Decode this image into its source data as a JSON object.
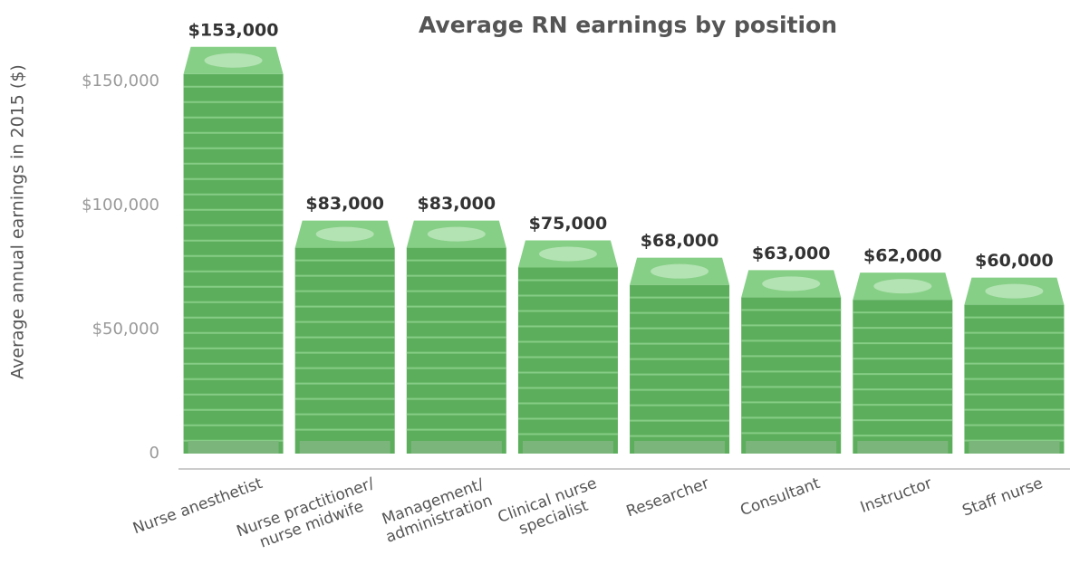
{
  "chart_data": {
    "type": "bar",
    "title": "Average RN earnings by position",
    "y_label": "Average annual earnings in 2015 ($)",
    "categories": [
      "Nurse anesthetist",
      "Nurse practitioner/\nnurse midwife",
      "Management/\nadministration",
      "Clinical nurse\nspecialist",
      "Researcher",
      "Consultant",
      "Instructor",
      "Staff nurse"
    ],
    "values": [
      153000,
      83000,
      83000,
      75000,
      68000,
      63000,
      62000,
      60000
    ],
    "value_labels": [
      "$153,000",
      "$83,000",
      "$83,000",
      "$75,000",
      "$68,000",
      "$63,000",
      "$62,000",
      "$60,000"
    ],
    "color": "#5cae5c",
    "ylim": [
      0,
      180000
    ],
    "yticks": [
      0,
      {
        "value": 50000,
        "label": "$50,000"
      },
      {
        "value": 100000,
        "label": "$100,000"
      },
      {
        "value": 150000,
        "label": "$150,000"
      }
    ],
    "grid": false
  }
}
